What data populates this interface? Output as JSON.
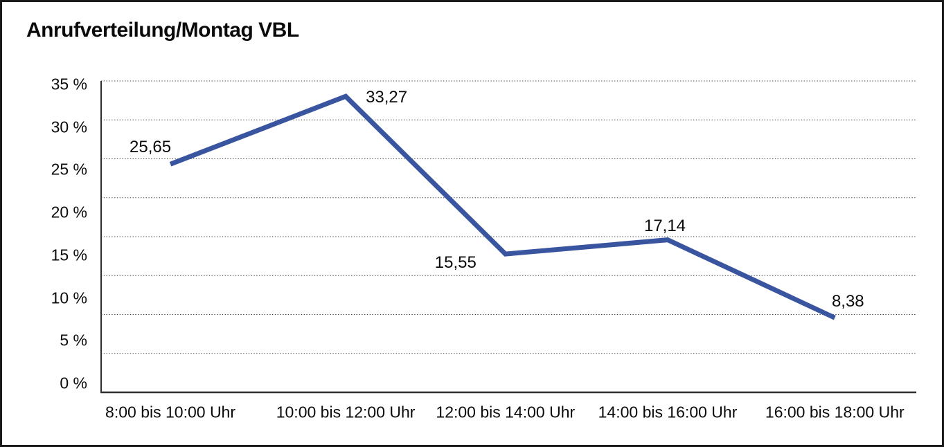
{
  "window": {
    "background": "#FFFFFF",
    "border_color": "#1A1A1A"
  },
  "chart_data": {
    "type": "line",
    "title": "Anrufverteilung/Montag VBL",
    "categories": [
      "8:00 bis 10:00 Uhr",
      "10:00 bis 12:00 Uhr",
      "12:00 bis 14:00 Uhr",
      "14:00 bis 16:00 Uhr",
      "16:00 bis 18:00 Uhr"
    ],
    "values": [
      25.65,
      33.27,
      15.55,
      17.14,
      8.38
    ],
    "point_labels": [
      "25,65",
      "33,27",
      "15,55",
      "17,14",
      "8,38"
    ],
    "y_tick_labels": [
      "35 %",
      "30 %",
      "25 %",
      "20 %",
      "15 %",
      "10 %",
      "5 %",
      "0 %"
    ],
    "y_tick_values": [
      35,
      30,
      25,
      20,
      15,
      10,
      5,
      0
    ],
    "ylim": [
      0,
      35
    ],
    "xlabel": "",
    "ylabel": "",
    "legend": "none",
    "grid": "horizontal-dotted-8-bands",
    "line_color": "#3A55A0",
    "axis_color": "#2E2E2E",
    "grid_color": "#444444",
    "text_color": "#0A0A0A"
  }
}
